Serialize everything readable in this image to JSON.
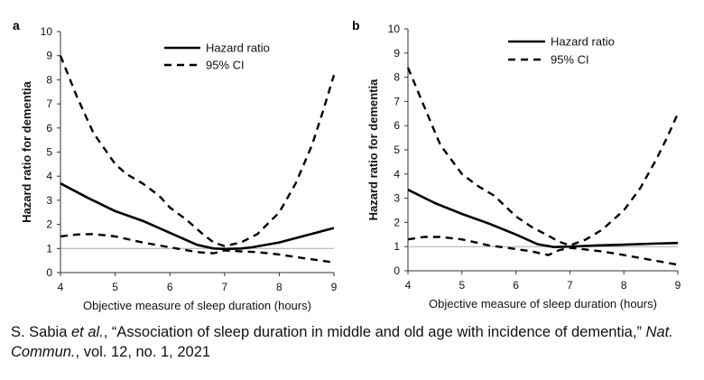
{
  "chart_data": [
    {
      "type": "line",
      "panel": "a",
      "xlabel": "Objective measure of sleep duration (hours)",
      "ylabel": "Hazard ratio for dementia",
      "xlim": [
        4,
        9
      ],
      "ylim": [
        0,
        10
      ],
      "xticks": [
        4,
        5,
        6,
        7,
        8,
        9
      ],
      "yticks": [
        0,
        1,
        2,
        3,
        4,
        5,
        6,
        7,
        8,
        9,
        10
      ],
      "reference_line": 1,
      "legend_position": "top-right",
      "series": [
        {
          "name": "Hazard ratio",
          "style": "solid",
          "x": [
            4.0,
            4.5,
            5.0,
            5.5,
            6.0,
            6.5,
            6.8,
            7.0,
            7.3,
            7.5,
            8.0,
            8.5,
            9.0
          ],
          "y": [
            3.7,
            3.1,
            2.55,
            2.15,
            1.65,
            1.15,
            1.0,
            0.98,
            1.0,
            1.05,
            1.25,
            1.55,
            1.85
          ]
        },
        {
          "name": "95% CI",
          "style": "dashed",
          "x": [
            4.0,
            4.3,
            4.6,
            5.0,
            5.2,
            5.5,
            5.8,
            6.0,
            6.3,
            6.6,
            6.8,
            7.0,
            7.3,
            7.6,
            8.0,
            8.3,
            8.6,
            8.8,
            9.0
          ],
          "y": [
            9.0,
            7.3,
            5.8,
            4.5,
            4.1,
            3.7,
            3.2,
            2.7,
            2.2,
            1.6,
            1.25,
            1.1,
            1.25,
            1.6,
            2.5,
            3.7,
            5.3,
            6.7,
            8.2
          ]
        },
        {
          "name": "95% CI",
          "style": "dashed",
          "x": [
            4.0,
            4.3,
            4.6,
            5.0,
            5.5,
            6.0,
            6.5,
            6.8,
            7.0,
            7.3,
            7.6,
            8.0,
            8.5,
            9.0
          ],
          "y": [
            1.5,
            1.58,
            1.6,
            1.5,
            1.25,
            1.05,
            0.85,
            0.8,
            0.92,
            0.88,
            0.85,
            0.75,
            0.58,
            0.42
          ]
        }
      ]
    },
    {
      "type": "line",
      "panel": "b",
      "xlabel": "Objective measure of sleep duration (hours)",
      "ylabel": "Hazard ratio for dementia",
      "xlim": [
        4,
        9
      ],
      "ylim": [
        0,
        10
      ],
      "xticks": [
        4,
        5,
        6,
        7,
        8,
        9
      ],
      "yticks": [
        0,
        1,
        2,
        3,
        4,
        5,
        6,
        7,
        8,
        9,
        10
      ],
      "reference_line": 1,
      "legend_position": "top-right",
      "series": [
        {
          "name": "Hazard ratio",
          "style": "solid",
          "x": [
            4.0,
            4.5,
            5.0,
            5.5,
            6.0,
            6.4,
            6.7,
            7.0,
            7.5,
            8.0,
            8.5,
            9.0
          ],
          "y": [
            3.35,
            2.8,
            2.35,
            1.95,
            1.5,
            1.1,
            0.98,
            1.0,
            1.05,
            1.08,
            1.12,
            1.15
          ]
        },
        {
          "name": "95% CI",
          "style": "dashed",
          "x": [
            4.0,
            4.3,
            4.6,
            5.0,
            5.3,
            5.6,
            6.0,
            6.3,
            6.6,
            6.8,
            7.0,
            7.3,
            7.6,
            8.0,
            8.3,
            8.6,
            8.8,
            9.0
          ],
          "y": [
            8.4,
            6.8,
            5.2,
            4.0,
            3.5,
            3.1,
            2.25,
            1.8,
            1.45,
            1.2,
            1.05,
            1.3,
            1.7,
            2.5,
            3.4,
            4.6,
            5.5,
            6.5
          ]
        },
        {
          "name": "95% CI",
          "style": "dashed",
          "x": [
            4.0,
            4.3,
            4.6,
            5.0,
            5.5,
            6.0,
            6.3,
            6.6,
            6.8,
            7.0,
            7.3,
            7.6,
            8.0,
            8.5,
            9.0
          ],
          "y": [
            1.3,
            1.4,
            1.4,
            1.3,
            1.05,
            0.9,
            0.8,
            0.65,
            0.85,
            0.95,
            0.88,
            0.8,
            0.65,
            0.45,
            0.25
          ]
        }
      ]
    }
  ],
  "caption": {
    "part1": "S. Sabia ",
    "part2": "et al.",
    "part3": ", “Association of sleep duration in middle and old age with incidence of dementia,” ",
    "part4": "Nat. Commun.",
    "part5": ", vol. 12, no. 1, 2021"
  }
}
